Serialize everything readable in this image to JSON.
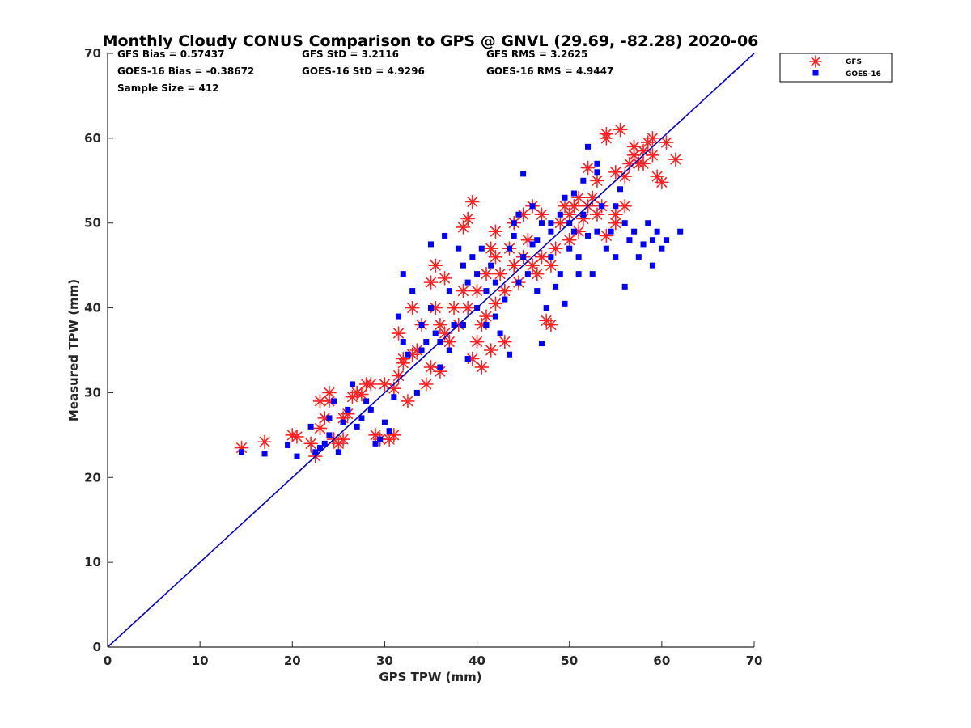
{
  "chart_data": {
    "type": "scatter",
    "title": "Monthly Cloudy CONUS Comparison to GPS @ GNVL (29.69, -82.28) 2020-06",
    "xlabel": "GPS TPW (mm)",
    "ylabel": "Measured TPW (mm)",
    "xlim": [
      0,
      70
    ],
    "ylim": [
      0,
      70
    ],
    "x_ticks": [
      "0",
      "10",
      "20",
      "30",
      "40",
      "50",
      "60",
      "70"
    ],
    "y_ticks": [
      "0",
      "10",
      "20",
      "30",
      "40",
      "50",
      "60",
      "70"
    ],
    "grid": false,
    "legend_position": "top-right",
    "stats": {
      "gfs_bias": "GFS Bias = 0.57437",
      "gfs_std": "GFS StD = 3.2116",
      "gfs_rms": "GFS RMS = 3.2625",
      "goes_bias": "GOES-16 Bias = -0.38672",
      "goes_std": "GOES-16 StD = 4.9296",
      "goes_rms": "GOES-16 RMS = 4.9447",
      "sample_size": "Sample Size = 412"
    },
    "reference_line": {
      "x": [
        0,
        70
      ],
      "y": [
        0,
        70
      ],
      "color": "#0000cc"
    },
    "series": [
      {
        "name": "GFS",
        "color": "#ff2020",
        "marker": "asterisk",
        "points": [
          [
            14.5,
            23.5
          ],
          [
            17,
            24.2
          ],
          [
            20,
            25
          ],
          [
            20.5,
            24.8
          ],
          [
            22,
            24
          ],
          [
            22.5,
            22.5
          ],
          [
            23,
            25.8
          ],
          [
            23,
            29
          ],
          [
            23.5,
            27
          ],
          [
            24,
            30
          ],
          [
            24,
            29
          ],
          [
            24.5,
            24.5
          ],
          [
            25,
            24
          ],
          [
            25.5,
            24.5
          ],
          [
            25.5,
            27
          ],
          [
            26,
            27.5
          ],
          [
            26.5,
            29.5
          ],
          [
            27,
            30
          ],
          [
            27.5,
            29.8
          ],
          [
            28,
            31
          ],
          [
            28.5,
            31
          ],
          [
            29,
            25
          ],
          [
            29.5,
            24.5
          ],
          [
            30,
            31
          ],
          [
            30.5,
            24.5
          ],
          [
            31,
            25
          ],
          [
            31,
            30.5
          ],
          [
            31.5,
            32
          ],
          [
            32,
            33.5
          ],
          [
            32.5,
            29
          ],
          [
            31.5,
            37
          ],
          [
            32,
            34
          ],
          [
            33,
            34.5
          ],
          [
            33,
            40
          ],
          [
            33.5,
            35
          ],
          [
            34,
            38
          ],
          [
            34.5,
            31
          ],
          [
            35,
            33
          ],
          [
            35,
            43
          ],
          [
            35.5,
            45
          ],
          [
            35.5,
            40
          ],
          [
            36,
            32.5
          ],
          [
            36,
            38
          ],
          [
            36.5,
            37
          ],
          [
            36.5,
            43.5
          ],
          [
            37,
            36
          ],
          [
            37.5,
            40
          ],
          [
            38,
            38
          ],
          [
            38.5,
            42
          ],
          [
            38.5,
            49.5
          ],
          [
            39,
            50.5
          ],
          [
            39.5,
            52.5
          ],
          [
            39,
            40
          ],
          [
            39.5,
            34
          ],
          [
            40,
            36
          ],
          [
            40,
            42
          ],
          [
            40.5,
            33
          ],
          [
            40.5,
            38
          ],
          [
            41,
            39
          ],
          [
            41,
            44
          ],
          [
            41.5,
            35
          ],
          [
            41.5,
            47
          ],
          [
            42,
            40.5
          ],
          [
            42,
            46
          ],
          [
            42,
            49
          ],
          [
            42.5,
            44
          ],
          [
            43,
            36
          ],
          [
            43,
            42
          ],
          [
            43.5,
            47
          ],
          [
            44,
            45
          ],
          [
            44,
            50
          ],
          [
            44.5,
            43
          ],
          [
            45,
            46
          ],
          [
            45,
            51
          ],
          [
            45.5,
            48
          ],
          [
            46,
            45
          ],
          [
            46,
            52
          ],
          [
            46.5,
            44
          ],
          [
            47,
            46
          ],
          [
            47,
            51
          ],
          [
            47.5,
            38.5
          ],
          [
            48,
            38
          ],
          [
            48,
            45
          ],
          [
            48.5,
            47
          ],
          [
            49,
            50
          ],
          [
            49.5,
            52
          ],
          [
            50,
            48
          ],
          [
            50,
            51
          ],
          [
            50.5,
            52
          ],
          [
            51,
            53
          ],
          [
            51.5,
            50.5
          ],
          [
            52,
            52
          ],
          [
            52,
            56.5
          ],
          [
            52.5,
            53
          ],
          [
            53,
            55
          ],
          [
            53.5,
            52
          ],
          [
            54,
            48.5
          ],
          [
            54,
            60
          ],
          [
            54,
            60.5
          ],
          [
            55,
            51
          ],
          [
            55,
            56
          ],
          [
            55.5,
            61
          ],
          [
            56,
            52
          ],
          [
            56,
            55.5
          ],
          [
            56.5,
            57
          ],
          [
            57,
            58
          ],
          [
            57,
            59
          ],
          [
            57.5,
            57
          ],
          [
            58,
            58.5
          ],
          [
            58,
            57
          ],
          [
            58.5,
            59.5
          ],
          [
            59,
            60
          ],
          [
            59,
            58
          ],
          [
            59.5,
            55.5
          ],
          [
            60,
            54.8
          ],
          [
            60.5,
            59.5
          ],
          [
            61.5,
            57.5
          ],
          [
            55,
            50
          ],
          [
            51,
            49
          ],
          [
            53,
            51
          ]
        ]
      },
      {
        "name": "GOES-16",
        "color": "#0000ff",
        "marker": "square",
        "points": [
          [
            14.5,
            23
          ],
          [
            17,
            22.8
          ],
          [
            19.5,
            23.8
          ],
          [
            20.5,
            22.5
          ],
          [
            22,
            26
          ],
          [
            22.5,
            23
          ],
          [
            23,
            23.5
          ],
          [
            23.5,
            24
          ],
          [
            24,
            27
          ],
          [
            24,
            25
          ],
          [
            24.5,
            29
          ],
          [
            25,
            23
          ],
          [
            25.5,
            26.5
          ],
          [
            26,
            28
          ],
          [
            26.5,
            31
          ],
          [
            27,
            26
          ],
          [
            27.5,
            27
          ],
          [
            28,
            29
          ],
          [
            28.5,
            28
          ],
          [
            29,
            24
          ],
          [
            29.5,
            24.5
          ],
          [
            30,
            26.5
          ],
          [
            30.5,
            25.5
          ],
          [
            31,
            29.5
          ],
          [
            31.5,
            39
          ],
          [
            32,
            44
          ],
          [
            32,
            36
          ],
          [
            32.5,
            34.5
          ],
          [
            33,
            42
          ],
          [
            33.5,
            30
          ],
          [
            34,
            38
          ],
          [
            34,
            35
          ],
          [
            34.5,
            36
          ],
          [
            35,
            40
          ],
          [
            35,
            47.5
          ],
          [
            35.5,
            37
          ],
          [
            36,
            36
          ],
          [
            36,
            33
          ],
          [
            36.5,
            48.5
          ],
          [
            37,
            35
          ],
          [
            37,
            42
          ],
          [
            37.5,
            38
          ],
          [
            38,
            47
          ],
          [
            38.5,
            45
          ],
          [
            38.5,
            38
          ],
          [
            39,
            34
          ],
          [
            39,
            43
          ],
          [
            39.5,
            46
          ],
          [
            40,
            40
          ],
          [
            40,
            44
          ],
          [
            40.5,
            47
          ],
          [
            41,
            38
          ],
          [
            41,
            42
          ],
          [
            41.5,
            45
          ],
          [
            42,
            39
          ],
          [
            42,
            43
          ],
          [
            42.5,
            37
          ],
          [
            43,
            41
          ],
          [
            43.5,
            34.5
          ],
          [
            43.5,
            47
          ],
          [
            44,
            50
          ],
          [
            44.5,
            43
          ],
          [
            44.5,
            51
          ],
          [
            45,
            55.8
          ],
          [
            45,
            46
          ],
          [
            45.5,
            44
          ],
          [
            46,
            52
          ],
          [
            46.5,
            42
          ],
          [
            46.5,
            48
          ],
          [
            47,
            35.8
          ],
          [
            47,
            50
          ],
          [
            47.5,
            40
          ],
          [
            48,
            46
          ],
          [
            48,
            49
          ],
          [
            48.5,
            42.5
          ],
          [
            49,
            44
          ],
          [
            49,
            51
          ],
          [
            49.5,
            53
          ],
          [
            49.5,
            40.5
          ],
          [
            50,
            47
          ],
          [
            50,
            50
          ],
          [
            50.5,
            49
          ],
          [
            51,
            44
          ],
          [
            51,
            46
          ],
          [
            51.5,
            55
          ],
          [
            51.5,
            51
          ],
          [
            52,
            48.5
          ],
          [
            52,
            59
          ],
          [
            52.5,
            44
          ],
          [
            53,
            49
          ],
          [
            53,
            56
          ],
          [
            53.5,
            52
          ],
          [
            54,
            47
          ],
          [
            54.5,
            49
          ],
          [
            55,
            52
          ],
          [
            55,
            46
          ],
          [
            55.5,
            54
          ],
          [
            56,
            50
          ],
          [
            56,
            42.5
          ],
          [
            56.5,
            48
          ],
          [
            57,
            49
          ],
          [
            57.5,
            46
          ],
          [
            58,
            47.5
          ],
          [
            58.5,
            50
          ],
          [
            59,
            48
          ],
          [
            59,
            45
          ],
          [
            59.5,
            49
          ],
          [
            60,
            47
          ],
          [
            60.5,
            48
          ],
          [
            62,
            49
          ],
          [
            53,
            57
          ],
          [
            50.5,
            53.5
          ],
          [
            48,
            50
          ],
          [
            46,
            47.5
          ],
          [
            44,
            48.5
          ]
        ]
      }
    ]
  }
}
